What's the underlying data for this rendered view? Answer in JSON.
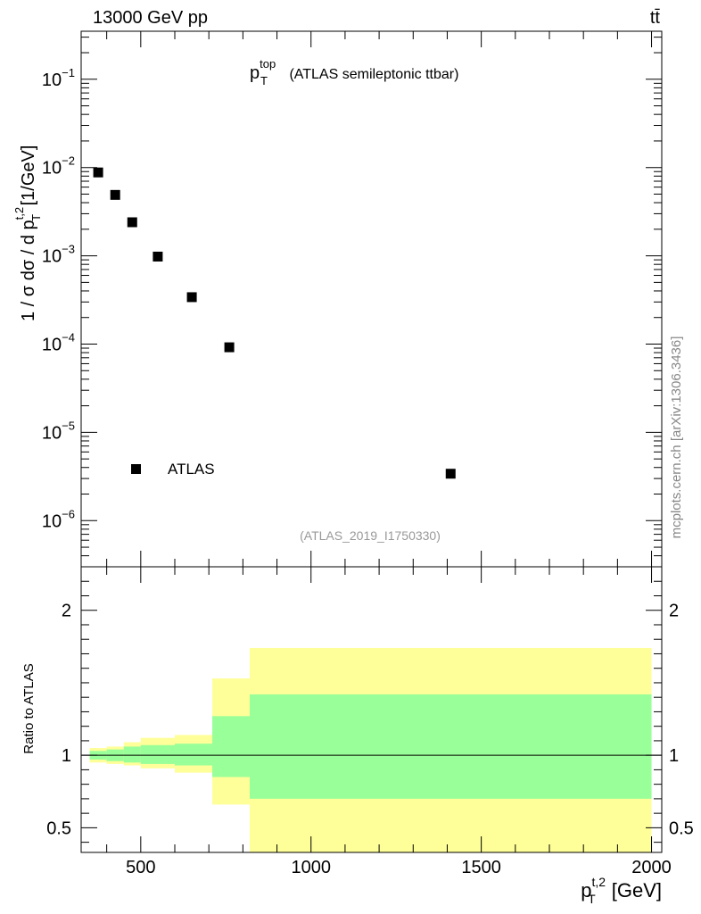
{
  "header": {
    "energy_label": "13000 GeV pp",
    "process_label": "tt̄",
    "side_label": "mcplots.cern.ch [arXiv:1306.3436]"
  },
  "top_panel": {
    "title_main": "p",
    "title_sup": "top",
    "title_sub": "T",
    "title_rest": " (ATLAS semileptonic ttbar)",
    "analysis_id": "(ATLAS_2019_I1750330)",
    "legend_label": "ATLAS",
    "ylabel": "1 / σ dσ / d p",
    "ylabel_sup": "t,2",
    "ylabel_sub": "T",
    "ylabel_unit": " [1/GeV]",
    "yticks": [
      {
        "value": 0.1,
        "base": "10",
        "exp": "−1"
      },
      {
        "value": 0.01,
        "base": "10",
        "exp": "−2"
      },
      {
        "value": 0.001,
        "base": "10",
        "exp": "−3"
      },
      {
        "value": 0.0001,
        "base": "10",
        "exp": "−4"
      },
      {
        "value": 1e-05,
        "base": "10",
        "exp": "−5"
      },
      {
        "value": 1e-06,
        "base": "10",
        "exp": "−6"
      }
    ]
  },
  "bottom_panel": {
    "ylabel": "Ratio to ATLAS",
    "yticks": [
      {
        "value": 2,
        "label": "2"
      },
      {
        "value": 1,
        "label": "1"
      },
      {
        "value": 0.5,
        "label": "0.5"
      }
    ]
  },
  "xaxis": {
    "label": "p",
    "label_sup": "t,2",
    "label_sub": "T",
    "label_unit": " [GeV]",
    "ticks": [
      {
        "value": 500,
        "label": "500"
      },
      {
        "value": 1000,
        "label": "1000"
      },
      {
        "value": 1500,
        "label": "1500"
      },
      {
        "value": 2000,
        "label": "2000"
      }
    ]
  },
  "chart_data": {
    "type": "scatter",
    "title": "p_T^top (ATLAS semileptonic ttbar)",
    "xlabel": "p_T^{t,2} [GeV]",
    "ylabel": "1 / σ dσ / d p_T^{t,2} [1/GeV]",
    "xlim": [
      325,
      2030
    ],
    "ylim_top": [
      3e-07,
      0.35
    ],
    "yscale_top": "log",
    "ylim_ratio": [
      0.33,
      2.3
    ],
    "series": [
      {
        "name": "ATLAS",
        "x": [
          375,
          425,
          475,
          550,
          650,
          760,
          1410
        ],
        "y": [
          0.0088,
          0.0049,
          0.0024,
          0.00098,
          0.00034,
          9.2e-05,
          3.4e-06
        ]
      }
    ],
    "ratio_bands": [
      {
        "xlo": 350,
        "xhi": 400,
        "inner": [
          0.97,
          1.03
        ],
        "outer": [
          0.95,
          1.05
        ]
      },
      {
        "xlo": 400,
        "xhi": 450,
        "inner": [
          0.96,
          1.04
        ],
        "outer": [
          0.94,
          1.06
        ]
      },
      {
        "xlo": 450,
        "xhi": 500,
        "inner": [
          0.95,
          1.06
        ],
        "outer": [
          0.93,
          1.09
        ]
      },
      {
        "xlo": 500,
        "xhi": 600,
        "inner": [
          0.94,
          1.07
        ],
        "outer": [
          0.91,
          1.12
        ]
      },
      {
        "xlo": 600,
        "xhi": 710,
        "inner": [
          0.93,
          1.08
        ],
        "outer": [
          0.88,
          1.14
        ]
      },
      {
        "xlo": 710,
        "xhi": 820,
        "inner": [
          0.85,
          1.27
        ],
        "outer": [
          0.66,
          1.53
        ]
      },
      {
        "xlo": 820,
        "xhi": 2000,
        "inner": [
          0.7,
          1.42
        ],
        "outer": [
          0.33,
          1.74
        ]
      }
    ],
    "ratio_reference": 1,
    "legend_position": "bottom-left"
  }
}
